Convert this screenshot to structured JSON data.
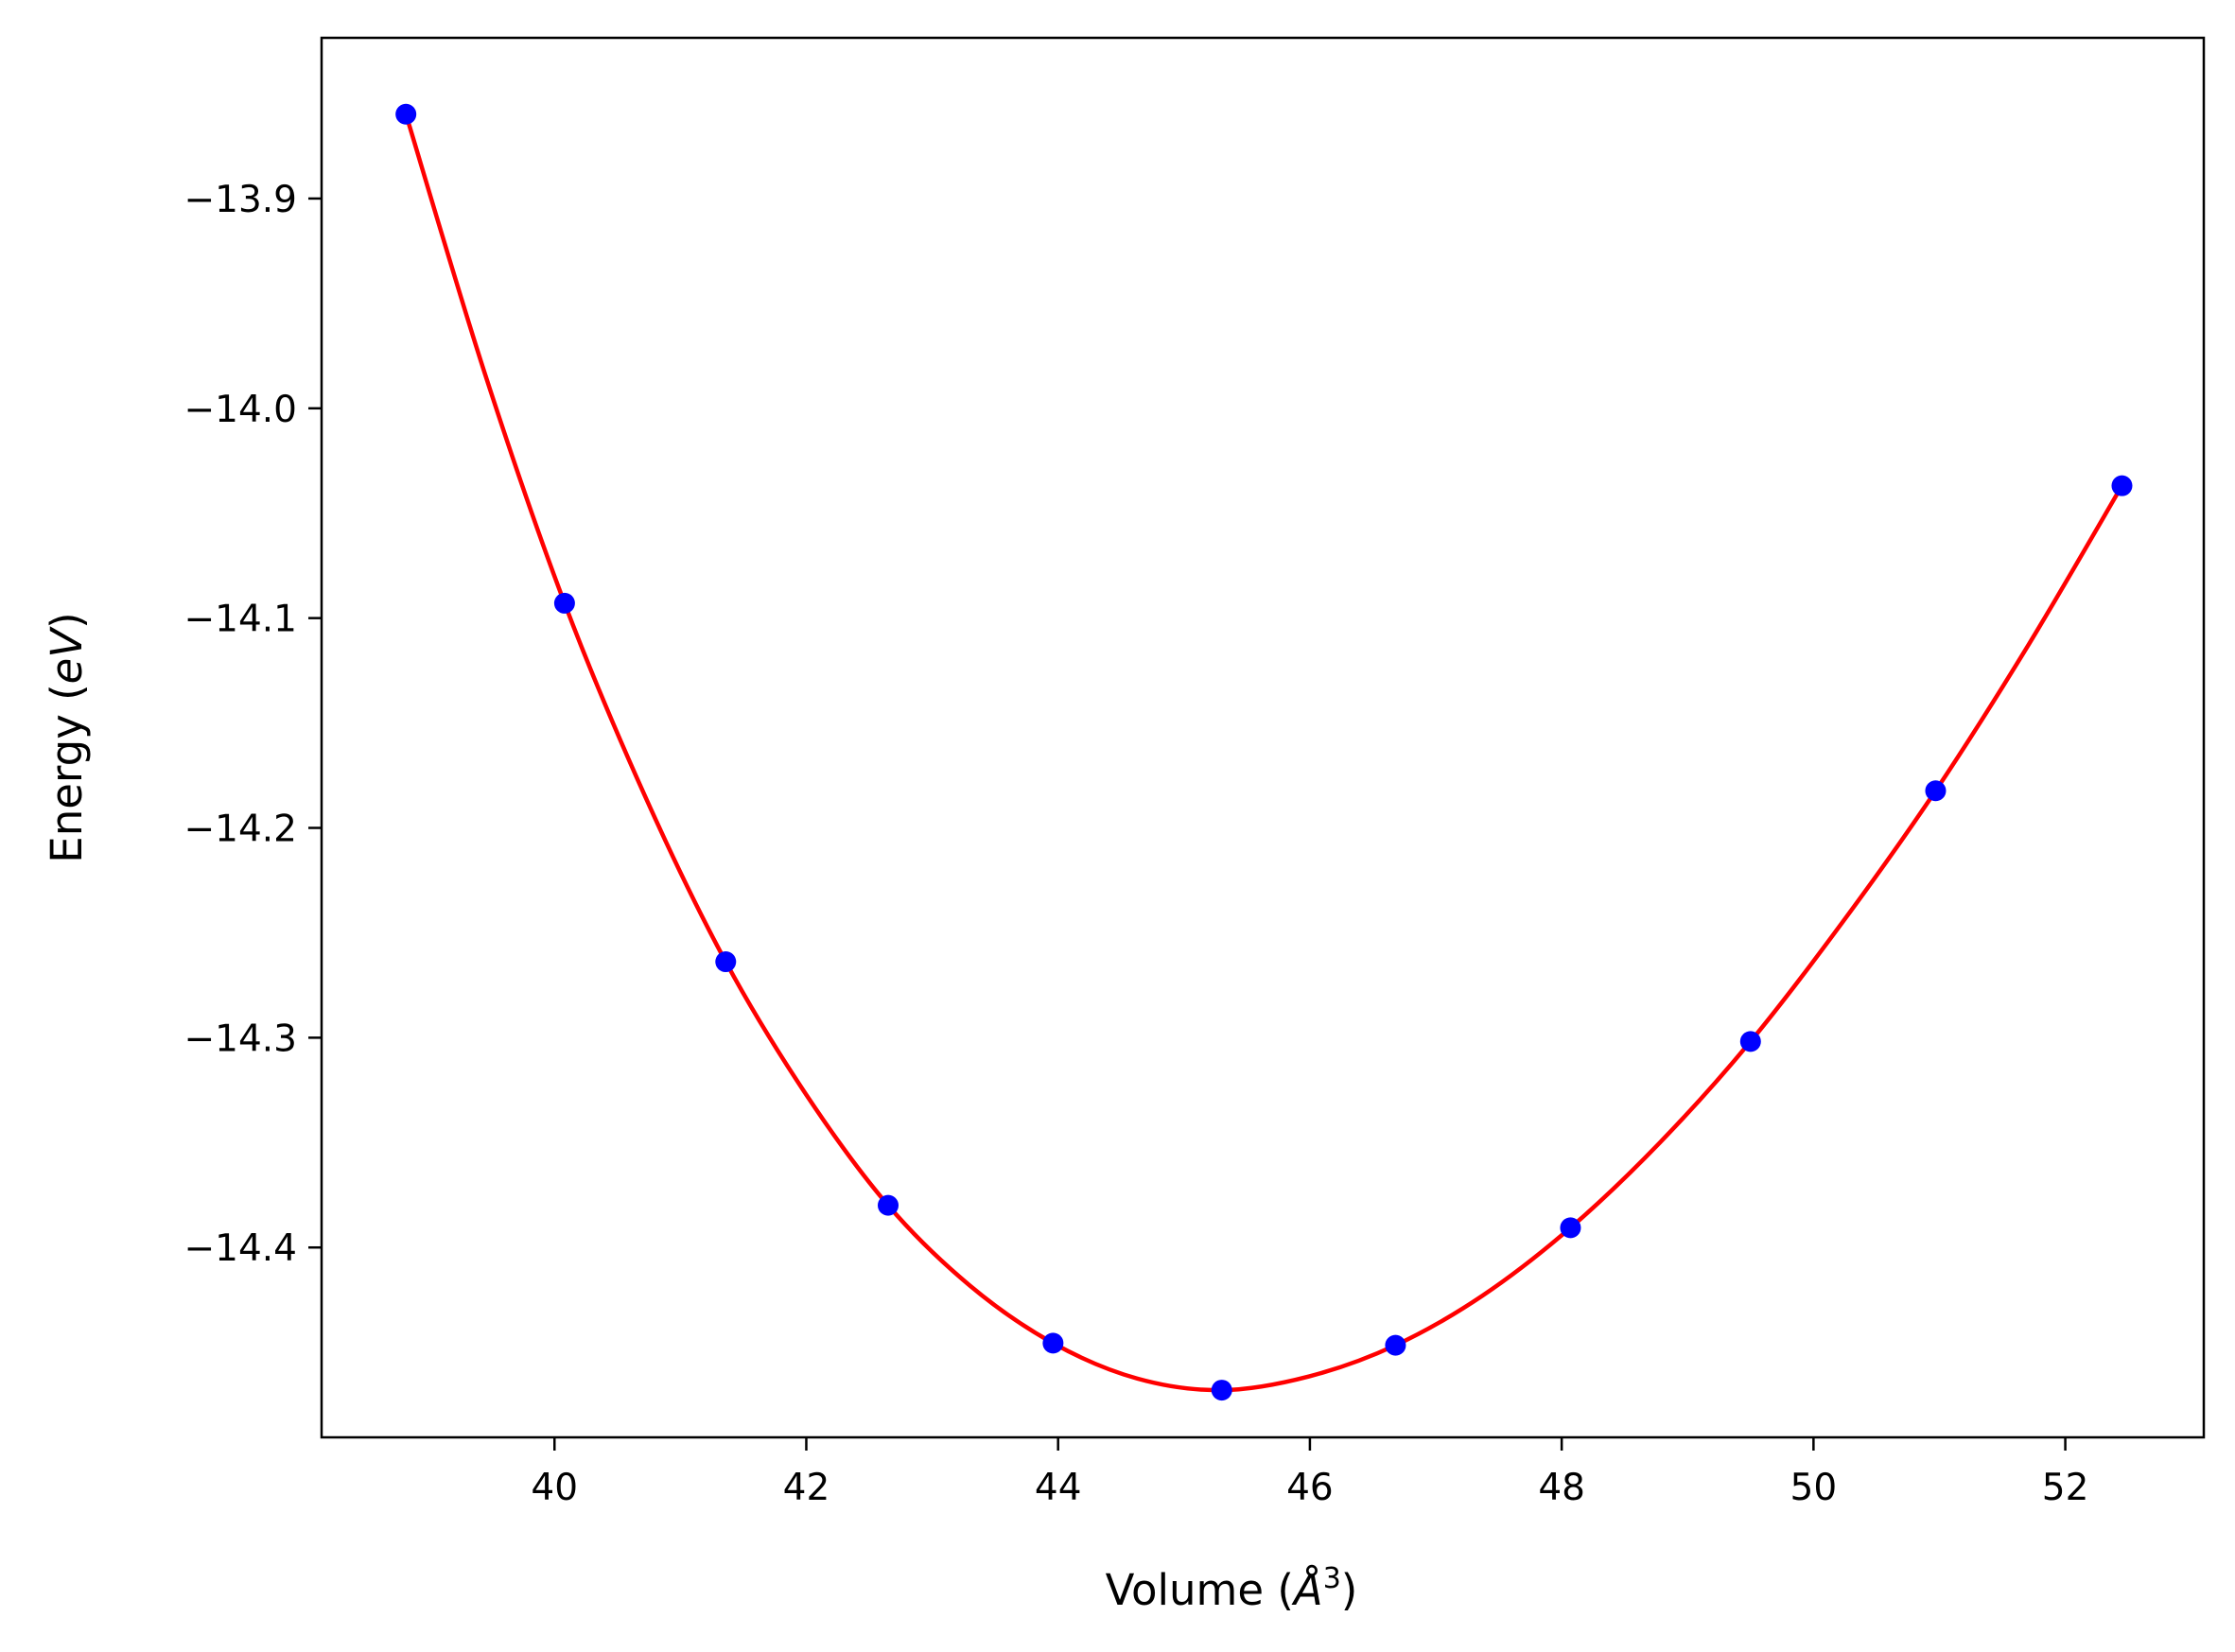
{
  "chart_data": {
    "type": "scatter",
    "xlabel_text": "Volume (",
    "xlabel_unit_base": "Å",
    "xlabel_unit_sup": "3",
    "xlabel_close": ")",
    "ylabel_text": "Energy (",
    "ylabel_unit": "eV",
    "ylabel_close": ")",
    "xlim": [
      38.15,
      53.1
    ],
    "ylim": [
      -14.4905,
      -13.8234
    ],
    "x_ticks": [
      {
        "value": 40,
        "label": "40"
      },
      {
        "value": 42,
        "label": "42"
      },
      {
        "value": 44,
        "label": "44"
      },
      {
        "value": 46,
        "label": "46"
      },
      {
        "value": 48,
        "label": "48"
      },
      {
        "value": 50,
        "label": "50"
      },
      {
        "value": 52,
        "label": "52"
      }
    ],
    "y_ticks": [
      {
        "value": -13.9,
        "label": "−13.9"
      },
      {
        "value": -14.0,
        "label": "−14.0"
      },
      {
        "value": -14.1,
        "label": "−14.1"
      },
      {
        "value": -14.2,
        "label": "−14.2"
      },
      {
        "value": -14.3,
        "label": "−14.3"
      },
      {
        "value": -14.4,
        "label": "−14.4"
      }
    ],
    "grid": false,
    "series": [
      {
        "kind": "points",
        "color": "#0000ff",
        "x": [
          38.82,
          40.08,
          41.36,
          42.65,
          43.96,
          45.3,
          46.68,
          48.07,
          49.5,
          50.97,
          52.45
        ],
        "y": [
          -13.8598,
          -14.0929,
          -14.2638,
          -14.3799,
          -14.4456,
          -14.468,
          -14.4466,
          -14.3906,
          -14.3018,
          -14.1823,
          -14.0369
        ]
      },
      {
        "kind": "curve",
        "color": "#ff0000",
        "x": [
          38.82,
          39.45,
          40.08,
          40.72,
          41.36,
          42.0,
          42.65,
          43.3,
          43.96,
          44.63,
          45.3,
          45.99,
          46.68,
          47.37,
          48.07,
          48.78,
          49.5,
          50.23,
          50.97,
          51.71,
          52.45
        ],
        "y": [
          -13.8598,
          -13.984,
          -14.0929,
          -14.185,
          -14.2638,
          -14.3272,
          -14.3799,
          -14.4182,
          -14.4456,
          -14.4625,
          -14.468,
          -14.4615,
          -14.4466,
          -14.423,
          -14.3906,
          -14.35,
          -14.3018,
          -14.245,
          -14.1823,
          -14.1125,
          -14.0369
        ]
      }
    ]
  }
}
